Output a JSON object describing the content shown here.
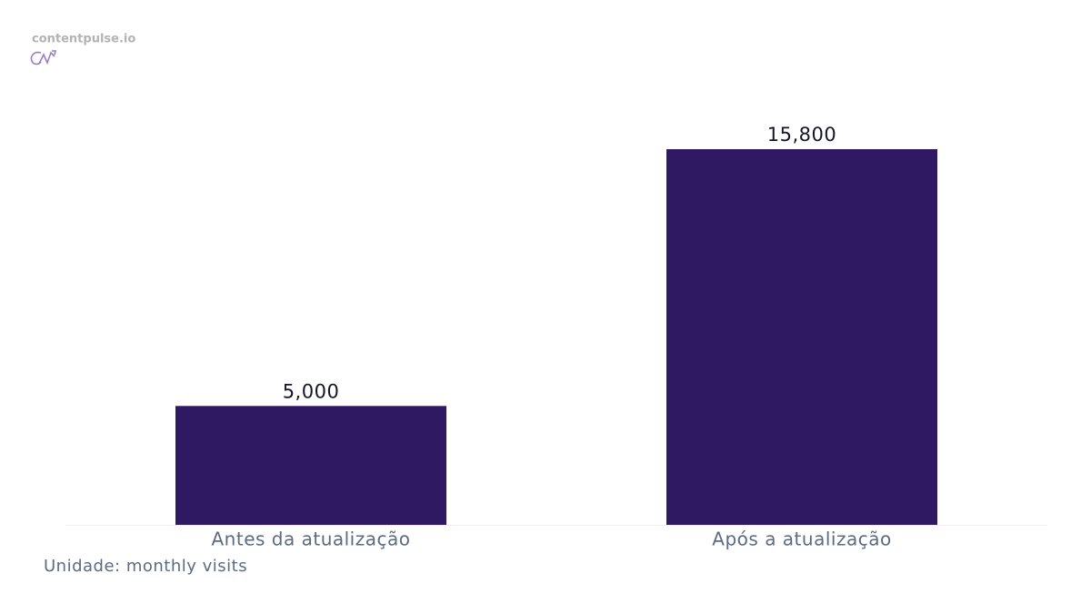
{
  "chart_data": {
    "type": "bar",
    "brand": "contentpulse.io",
    "categories": [
      "Antes da atualização",
      "Após a atualização"
    ],
    "values": [
      5000,
      15800
    ],
    "value_labels": [
      "5,000",
      "15,800"
    ],
    "color": "#2e1962",
    "note": "Unidade: monthly visits"
  }
}
